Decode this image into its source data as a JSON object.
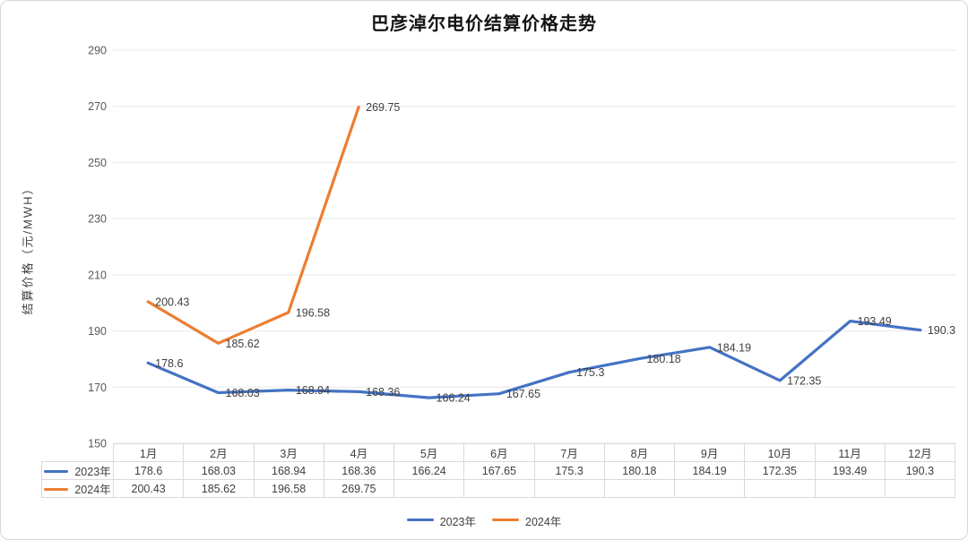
{
  "title": "巴彦淖尔电价结算价格走势",
  "y_axis_title": "结算价格（元/MWH）",
  "colors": {
    "series_2023": "#4472C4",
    "series_2024": "#ED7D31",
    "gridline": "#e8e8e8",
    "tick_text": "#595959",
    "label_text": "#3f3f3f",
    "table_border": "#d9d9d9",
    "title_text": "#141414"
  },
  "chart_data": {
    "type": "line",
    "title": "巴彦淖尔电价结算价格走势",
    "ylabel": "结算价格（元/MWH）",
    "ylim": [
      150,
      290
    ],
    "yticks": [
      150,
      170,
      190,
      210,
      230,
      250,
      270,
      290
    ],
    "grid": true,
    "data_labels": "right",
    "data_table": true,
    "legend_position": "bottom",
    "categories": [
      "1月",
      "2月",
      "3月",
      "4月",
      "5月",
      "6月",
      "7月",
      "8月",
      "9月",
      "10月",
      "11月",
      "12月"
    ],
    "series": [
      {
        "name": "2023年",
        "color": "#4472C4",
        "values": [
          178.6,
          168.03,
          168.94,
          168.36,
          166.24,
          167.65,
          175.3,
          180.18,
          184.19,
          172.35,
          193.49,
          190.3
        ]
      },
      {
        "name": "2024年",
        "color": "#ED7D31",
        "values": [
          200.43,
          185.62,
          196.58,
          269.75,
          null,
          null,
          null,
          null,
          null,
          null,
          null,
          null
        ]
      }
    ]
  },
  "legend": {
    "items": [
      {
        "label": "2023年",
        "color": "#4472C4"
      },
      {
        "label": "2024年",
        "color": "#ED7D31"
      }
    ]
  }
}
